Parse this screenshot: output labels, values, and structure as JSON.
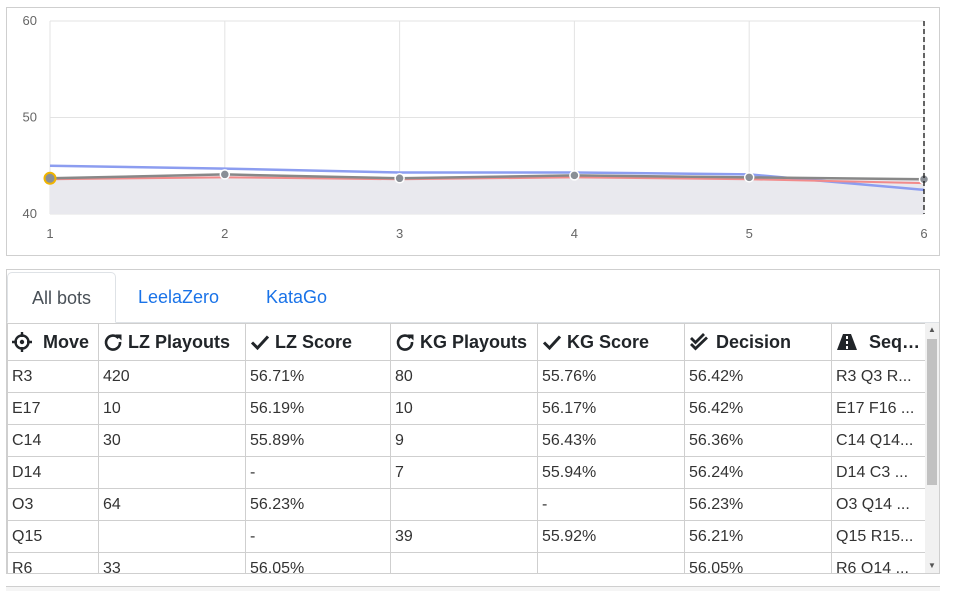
{
  "chart": {
    "y_ticks": [
      "60",
      "50",
      "40"
    ],
    "x_ticks": [
      "1",
      "2",
      "3",
      "4",
      "5",
      "6"
    ],
    "ylim": [
      40,
      60
    ],
    "xlim": [
      1,
      6
    ],
    "current_move": 6,
    "highlight_move": 1,
    "colors": {
      "lz": "#8c9df0",
      "kg": "#f28b8b",
      "decision": "#888888",
      "fill": "#e9e9ee",
      "highlight": "#f0b400"
    }
  },
  "chart_data": {
    "type": "line",
    "x": [
      1,
      2,
      3,
      4,
      5,
      6
    ],
    "ylim": [
      40,
      60
    ],
    "xlim": [
      1,
      6
    ],
    "grid": true,
    "series": [
      {
        "values": [
          45.0,
          44.7,
          44.3,
          44.3,
          44.1,
          42.5
        ]
      },
      {
        "values": [
          43.6,
          43.8,
          43.6,
          43.8,
          43.6,
          43.2
        ]
      },
      {
        "values": [
          43.7,
          44.1,
          43.7,
          44.0,
          43.8,
          43.6
        ]
      }
    ]
  },
  "tabs": [
    "All bots",
    "LeelaZero",
    "KataGo"
  ],
  "table": {
    "headers": [
      "Move",
      "LZ Playouts",
      "LZ Score",
      "KG Playouts",
      "KG Score",
      "Decision",
      "Sequence"
    ],
    "header_icons": [
      "crosshair-icon",
      "redo-icon",
      "check-icon",
      "redo-icon",
      "check-icon",
      "double-check-icon",
      "road-icon"
    ],
    "rows": [
      [
        "R3",
        "420",
        "56.71%",
        "80",
        "55.76%",
        "56.42%",
        "R3 Q3 R..."
      ],
      [
        "E17",
        "10",
        "56.19%",
        "10",
        "56.17%",
        "56.42%",
        "E17 F16 ..."
      ],
      [
        "C14",
        "30",
        "55.89%",
        "9",
        "56.43%",
        "56.36%",
        "C14 Q14..."
      ],
      [
        "D14",
        "",
        "-",
        "7",
        "55.94%",
        "56.24%",
        "D14 C3 ..."
      ],
      [
        "O3",
        "64",
        "56.23%",
        "",
        "-",
        "56.23%",
        "O3 Q14 ..."
      ],
      [
        "Q15",
        "",
        "-",
        "39",
        "55.92%",
        "56.21%",
        "Q15 R15..."
      ],
      [
        "R6",
        "33",
        "56.05%",
        "",
        "",
        "56.05%",
        "R6 Q14 ..."
      ]
    ]
  }
}
